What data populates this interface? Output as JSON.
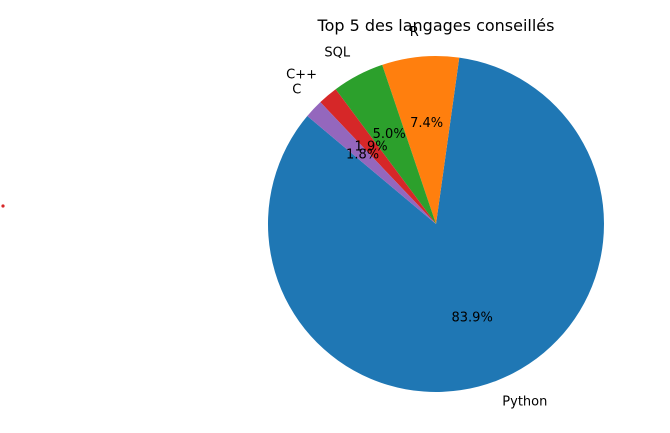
{
  "chart_data": {
    "type": "pie",
    "title": "Top 5 des langages conseillés",
    "categories": [
      "Python",
      "R",
      "SQL",
      "C++",
      "C"
    ],
    "values": [
      83.9,
      7.4,
      5.0,
      1.9,
      1.8
    ],
    "value_labels": [
      "83.9%",
      "7.4%",
      "5.0%",
      "1.9%",
      "1.8%"
    ],
    "colors": [
      "#1f77b4",
      "#ff7f0e",
      "#2ca02c",
      "#d62728",
      "#9467bd"
    ],
    "legend": "none"
  }
}
